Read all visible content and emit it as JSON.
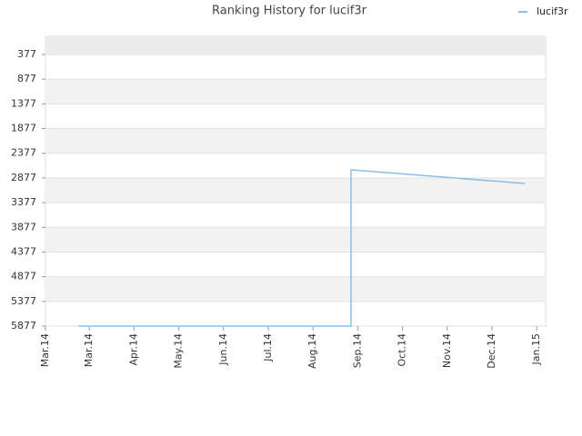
{
  "chart_data": {
    "type": "line",
    "title": "Ranking History for lucif3r",
    "x": [
      -0.24,
      5.85,
      5.85,
      9.74
    ],
    "series": [
      {
        "name": "lucif3r",
        "color": "#8cbfe6",
        "values": [
          5877,
          5877,
          2713,
          2989
        ]
      }
    ],
    "xlim": [
      -0.98,
      10.2
    ],
    "xticks": [
      {
        "value": -0.98,
        "label": "Mar.14"
      },
      {
        "value": 0,
        "label": "Mar.14"
      },
      {
        "value": 1,
        "label": "Apr.14"
      },
      {
        "value": 2,
        "label": "May.14"
      },
      {
        "value": 3,
        "label": "Jun.14"
      },
      {
        "value": 4,
        "label": "Jul.14"
      },
      {
        "value": 5,
        "label": "Aug.14"
      },
      {
        "value": 6,
        "label": "Sep.14"
      },
      {
        "value": 7,
        "label": "Oct.14"
      },
      {
        "value": 8,
        "label": "Nov.14"
      },
      {
        "value": 9,
        "label": "Dec.14"
      },
      {
        "value": 10,
        "label": "Jan.15"
      }
    ],
    "ylim": [
      5877,
      9
    ],
    "yticks": [
      377,
      877,
      1377,
      1877,
      2377,
      2877,
      3377,
      3877,
      4377,
      4877,
      5377,
      5877
    ],
    "legend": "top-right",
    "grid": true
  }
}
